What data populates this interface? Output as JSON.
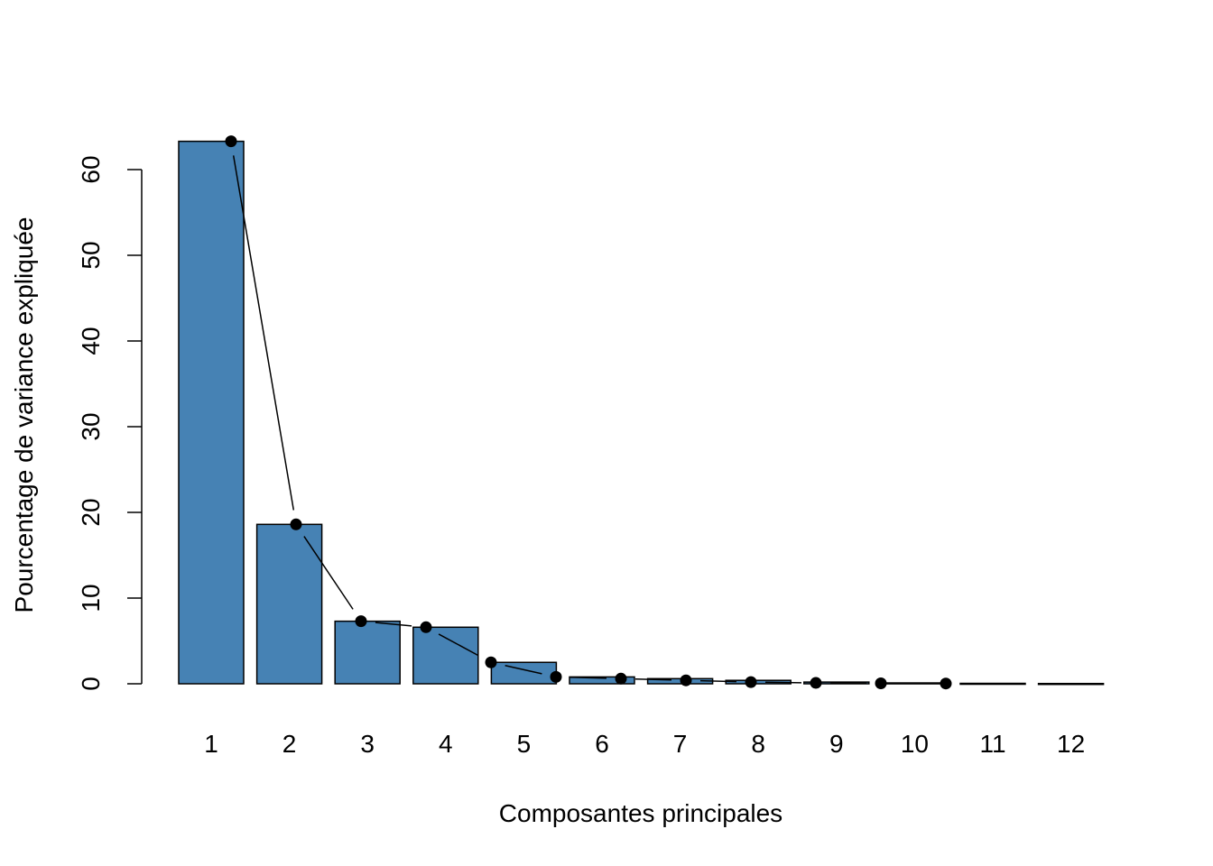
{
  "chart_data": {
    "type": "bar",
    "title": "",
    "xlabel": "Composantes principales",
    "ylabel": "Pourcentage de variance expliquée",
    "categories": [
      "1",
      "2",
      "3",
      "4",
      "5",
      "6",
      "7",
      "8",
      "9",
      "10",
      "11",
      "12"
    ],
    "values": [
      63.3,
      18.6,
      7.3,
      6.6,
      2.5,
      0.8,
      0.6,
      0.4,
      0.2,
      0.1,
      0.05,
      0.03
    ],
    "line_values": [
      63.3,
      18.6,
      7.3,
      6.6,
      2.5,
      0.8,
      0.6,
      0.4,
      0.2,
      0.1,
      0.05,
      0.03
    ],
    "yticks": [
      "0",
      "10",
      "20",
      "30",
      "40",
      "50",
      "60"
    ],
    "ylim": [
      0,
      63.3
    ],
    "bar_color": "#4682B4",
    "line_color": "#000000",
    "grid": false
  }
}
